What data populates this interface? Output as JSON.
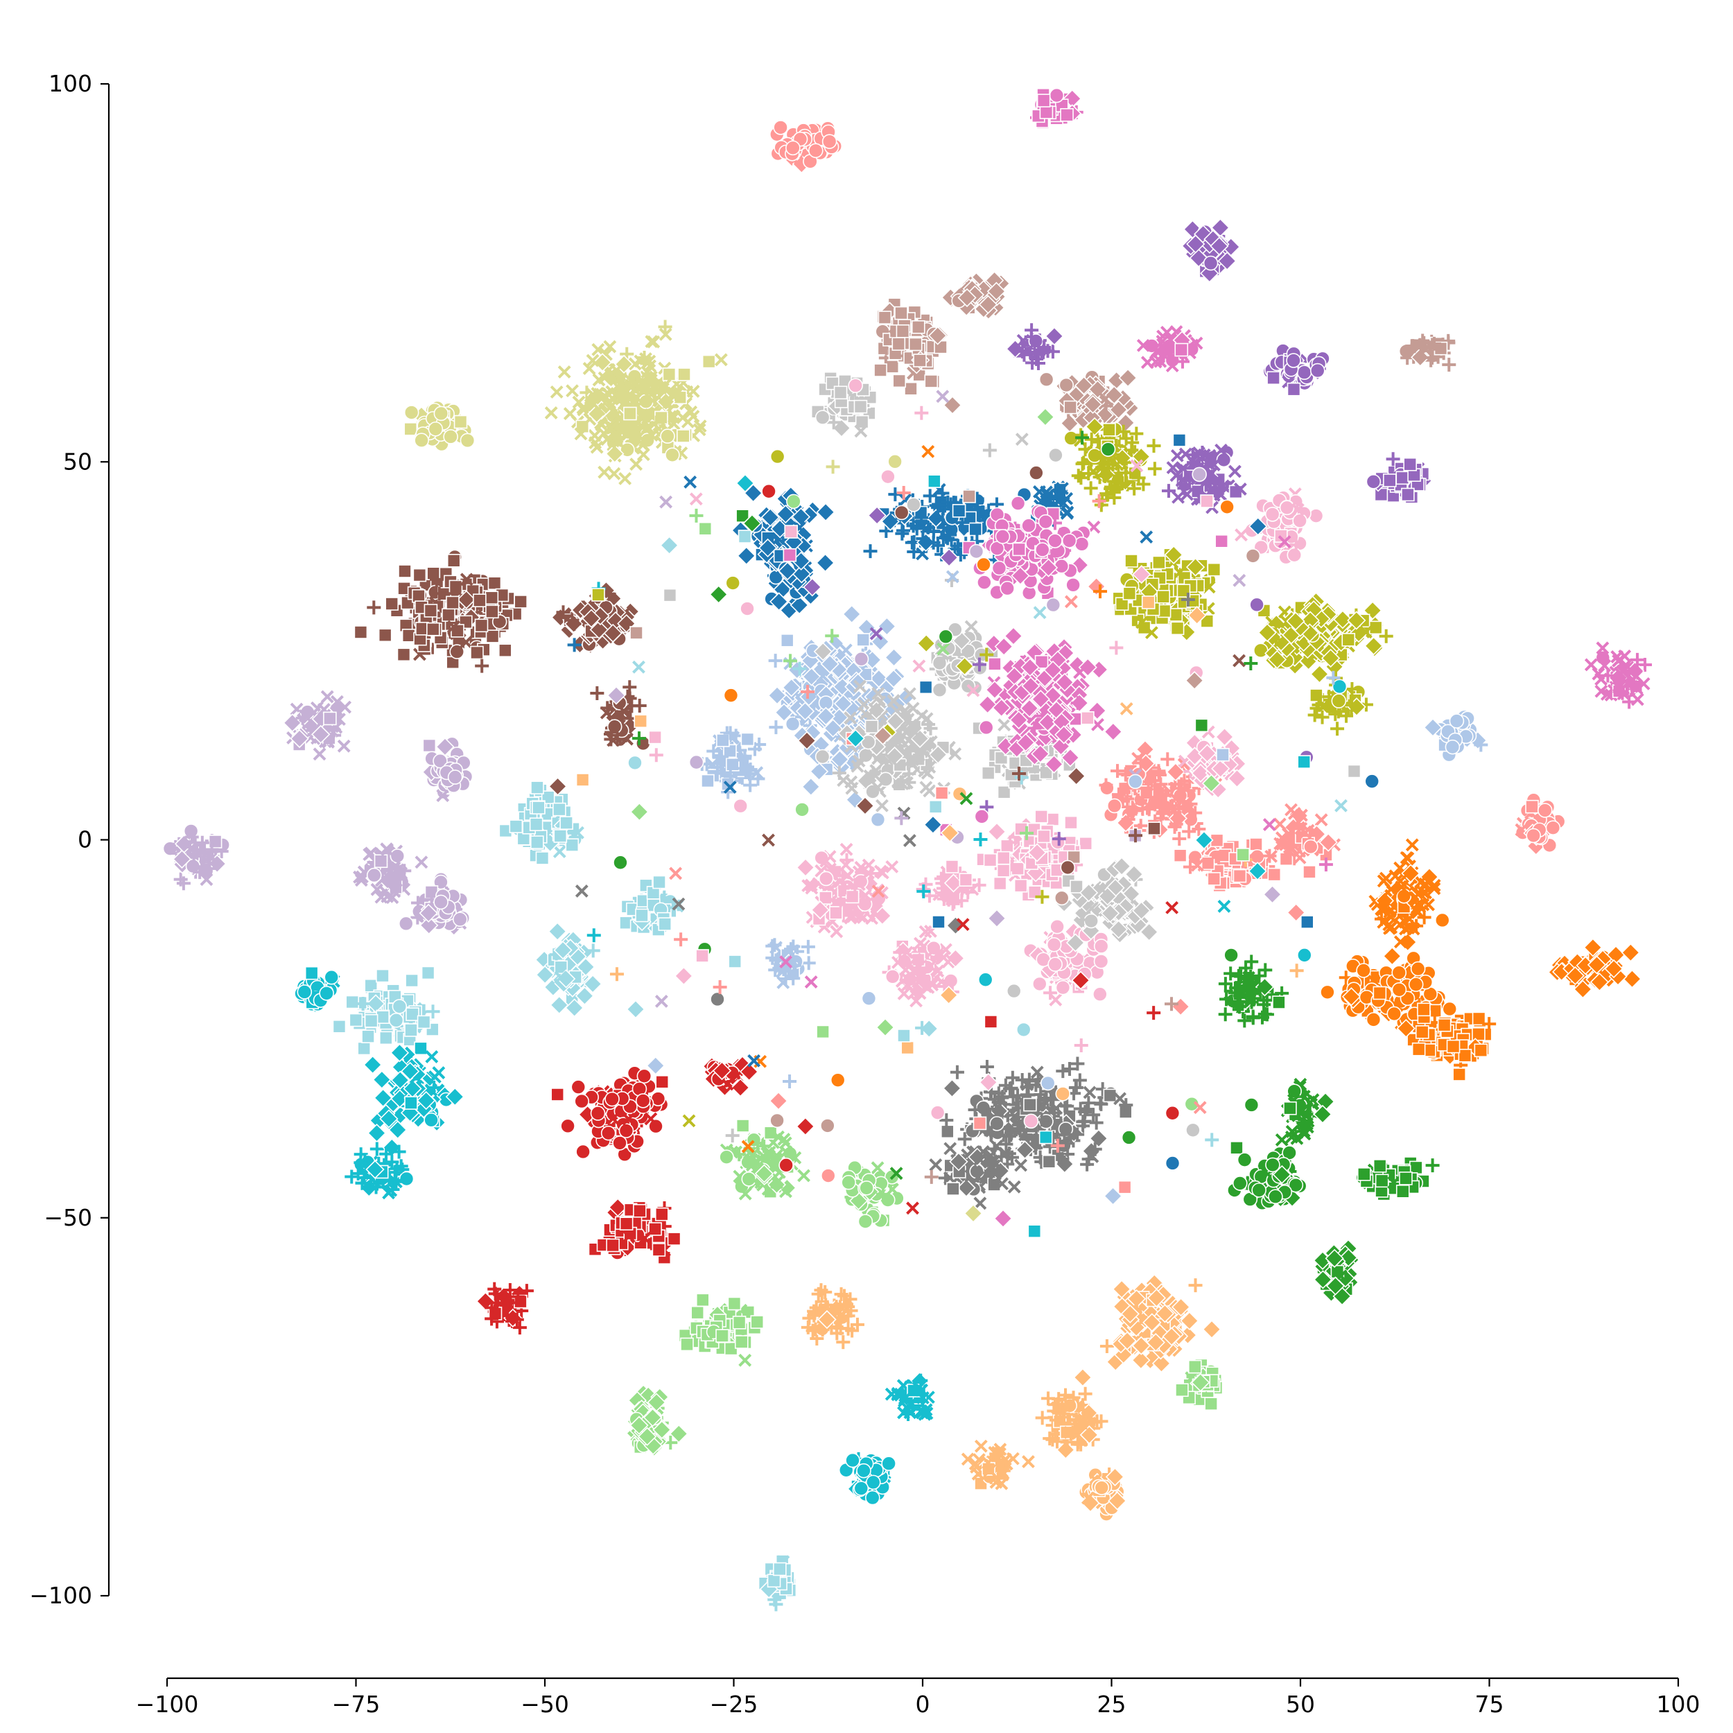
{
  "chart_data": {
    "type": "scatter",
    "title": "",
    "xlabel": "",
    "ylabel": "",
    "xlim": [
      -100,
      100
    ],
    "ylim": [
      -100,
      100
    ],
    "xticks": [
      -100,
      -75,
      -50,
      -25,
      0,
      25,
      50,
      75,
      100
    ],
    "yticks": [
      -100,
      -50,
      0,
      50,
      100
    ],
    "xtick_labels": [
      "−100",
      "−75",
      "−50",
      "−25",
      "0",
      "25",
      "50",
      "75",
      "100"
    ],
    "ytick_labels": [
      "−100",
      "−50",
      "0",
      "50",
      "100"
    ],
    "grid": false,
    "legend": "none",
    "marker_shapes": [
      "circle",
      "square",
      "diamond",
      "plus",
      "x"
    ],
    "clusters": [
      {
        "color": "#ff9896",
        "center": [
          -15,
          92
        ],
        "spread": [
          5,
          3
        ]
      },
      {
        "color": "#e377c2",
        "center": [
          17,
          97
        ],
        "spread": [
          3,
          3
        ]
      },
      {
        "color": "#9467bd",
        "center": [
          38,
          78
        ],
        "spread": [
          3,
          4
        ]
      },
      {
        "color": "#c49c94",
        "center": [
          67,
          65
        ],
        "spread": [
          4,
          2
        ]
      },
      {
        "color": "#dbdb8d",
        "center": [
          -38,
          57
        ],
        "spread": [
          10,
          10
        ]
      },
      {
        "color": "#dbdb8d",
        "center": [
          -64,
          55
        ],
        "spread": [
          4,
          3
        ]
      },
      {
        "color": "#c49c94",
        "center": [
          -2,
          66
        ],
        "spread": [
          5,
          6
        ]
      },
      {
        "color": "#c49c94",
        "center": [
          7,
          72
        ],
        "spread": [
          4,
          3
        ]
      },
      {
        "color": "#9467bd",
        "center": [
          15,
          65
        ],
        "spread": [
          3,
          2
        ]
      },
      {
        "color": "#e377c2",
        "center": [
          33,
          65
        ],
        "spread": [
          4,
          3
        ]
      },
      {
        "color": "#9467bd",
        "center": [
          49,
          62
        ],
        "spread": [
          4,
          3
        ]
      },
      {
        "color": "#c7c7c7",
        "center": [
          -10,
          58
        ],
        "spread": [
          4,
          4
        ]
      },
      {
        "color": "#c49c94",
        "center": [
          23,
          58
        ],
        "spread": [
          5,
          4
        ]
      },
      {
        "color": "#bcbd22",
        "center": [
          25,
          50
        ],
        "spread": [
          6,
          6
        ]
      },
      {
        "color": "#9467bd",
        "center": [
          37,
          48
        ],
        "spread": [
          5,
          5
        ]
      },
      {
        "color": "#f7b6d2",
        "center": [
          48,
          42
        ],
        "spread": [
          4,
          5
        ]
      },
      {
        "color": "#9467bd",
        "center": [
          63,
          47
        ],
        "spread": [
          4,
          3
        ]
      },
      {
        "color": "#1f77b4",
        "center": [
          -18,
          38
        ],
        "spread": [
          5,
          8
        ]
      },
      {
        "color": "#1f77b4",
        "center": [
          3,
          42
        ],
        "spread": [
          9,
          5
        ]
      },
      {
        "color": "#1f77b4",
        "center": [
          17,
          45
        ],
        "spread": [
          3,
          3
        ]
      },
      {
        "color": "#e377c2",
        "center": [
          14,
          38
        ],
        "spread": [
          8,
          6
        ]
      },
      {
        "color": "#bcbd22",
        "center": [
          32,
          33
        ],
        "spread": [
          8,
          6
        ]
      },
      {
        "color": "#bcbd22",
        "center": [
          52,
          27
        ],
        "spread": [
          9,
          5
        ]
      },
      {
        "color": "#bcbd22",
        "center": [
          55,
          18
        ],
        "spread": [
          4,
          3
        ]
      },
      {
        "color": "#e377c2",
        "center": [
          93,
          21
        ],
        "spread": [
          4,
          4
        ]
      },
      {
        "color": "#aec7e8",
        "center": [
          71,
          14
        ],
        "spread": [
          3,
          4
        ]
      },
      {
        "color": "#8c564b",
        "center": [
          -62,
          30
        ],
        "spread": [
          9,
          7
        ]
      },
      {
        "color": "#8c564b",
        "center": [
          -43,
          29
        ],
        "spread": [
          5,
          4
        ]
      },
      {
        "color": "#8c564b",
        "center": [
          -40,
          16
        ],
        "spread": [
          3,
          4
        ]
      },
      {
        "color": "#c5b0d5",
        "center": [
          -80,
          15
        ],
        "spread": [
          4,
          4
        ]
      },
      {
        "color": "#c5b0d5",
        "center": [
          -63,
          9
        ],
        "spread": [
          3,
          4
        ]
      },
      {
        "color": "#9edae5",
        "center": [
          -50,
          2
        ],
        "spread": [
          5,
          5
        ]
      },
      {
        "color": "#aec7e8",
        "center": [
          -11,
          18
        ],
        "spread": [
          9,
          10
        ]
      },
      {
        "color": "#aec7e8",
        "center": [
          -25,
          10
        ],
        "spread": [
          4,
          5
        ]
      },
      {
        "color": "#c7c7c7",
        "center": [
          -4,
          12
        ],
        "spread": [
          8,
          8
        ]
      },
      {
        "color": "#c7c7c7",
        "center": [
          5,
          24
        ],
        "spread": [
          5,
          4
        ]
      },
      {
        "color": "#c7c7c7",
        "center": [
          14,
          12
        ],
        "spread": [
          6,
          6
        ]
      },
      {
        "color": "#e377c2",
        "center": [
          16,
          18
        ],
        "spread": [
          8,
          8
        ]
      },
      {
        "color": "#ff9896",
        "center": [
          31,
          6
        ],
        "spread": [
          8,
          6
        ]
      },
      {
        "color": "#ff9896",
        "center": [
          50,
          0
        ],
        "spread": [
          4,
          4
        ]
      },
      {
        "color": "#ff9896",
        "center": [
          81,
          2
        ],
        "spread": [
          3,
          3
        ]
      },
      {
        "color": "#ff9896",
        "center": [
          40,
          -3
        ],
        "spread": [
          7,
          4
        ]
      },
      {
        "color": "#f7b6d2",
        "center": [
          38,
          10
        ],
        "spread": [
          4,
          4
        ]
      },
      {
        "color": "#f7b6d2",
        "center": [
          4,
          -6
        ],
        "spread": [
          4,
          3
        ]
      },
      {
        "color": "#f7b6d2",
        "center": [
          -10,
          -7
        ],
        "spread": [
          6,
          6
        ]
      },
      {
        "color": "#f7b6d2",
        "center": [
          19,
          -16
        ],
        "spread": [
          5,
          5
        ]
      },
      {
        "color": "#f7b6d2",
        "center": [
          15,
          -2
        ],
        "spread": [
          7,
          5
        ]
      },
      {
        "color": "#c7c7c7",
        "center": [
          25,
          -8
        ],
        "spread": [
          6,
          5
        ]
      },
      {
        "color": "#c5b0d5",
        "center": [
          -96,
          -2
        ],
        "spread": [
          4,
          4
        ]
      },
      {
        "color": "#c5b0d5",
        "center": [
          -71,
          -4
        ],
        "spread": [
          4,
          4
        ]
      },
      {
        "color": "#c5b0d5",
        "center": [
          -64,
          -9
        ],
        "spread": [
          4,
          4
        ]
      },
      {
        "color": "#9edae5",
        "center": [
          -36,
          -9
        ],
        "spread": [
          4,
          4
        ]
      },
      {
        "color": "#9edae5",
        "center": [
          -47,
          -17
        ],
        "spread": [
          4,
          5
        ]
      },
      {
        "color": "#aec7e8",
        "center": [
          -18,
          -16
        ],
        "spread": [
          3,
          3
        ]
      },
      {
        "color": "#f7b6d2",
        "center": [
          0,
          -17
        ],
        "spread": [
          5,
          5
        ]
      },
      {
        "color": "#17becf",
        "center": [
          -80,
          -20
        ],
        "spread": [
          3,
          3
        ]
      },
      {
        "color": "#9edae5",
        "center": [
          -70,
          -23
        ],
        "spread": [
          6,
          5
        ]
      },
      {
        "color": "#17becf",
        "center": [
          -67,
          -33
        ],
        "spread": [
          5,
          6
        ]
      },
      {
        "color": "#17becf",
        "center": [
          -72,
          -44
        ],
        "spread": [
          4,
          4
        ]
      },
      {
        "color": "#ff7f0e",
        "center": [
          64,
          -8
        ],
        "spread": [
          5,
          6
        ]
      },
      {
        "color": "#ff7f0e",
        "center": [
          62,
          -20
        ],
        "spread": [
          8,
          5
        ]
      },
      {
        "color": "#ff7f0e",
        "center": [
          70,
          -26
        ],
        "spread": [
          7,
          4
        ]
      },
      {
        "color": "#ff7f0e",
        "center": [
          89,
          -17
        ],
        "spread": [
          5,
          3
        ]
      },
      {
        "color": "#2ca02c",
        "center": [
          43,
          -20
        ],
        "spread": [
          4,
          5
        ]
      },
      {
        "color": "#2ca02c",
        "center": [
          50,
          -36
        ],
        "spread": [
          3,
          4
        ]
      },
      {
        "color": "#2ca02c",
        "center": [
          46,
          -45
        ],
        "spread": [
          5,
          4
        ]
      },
      {
        "color": "#2ca02c",
        "center": [
          62,
          -45
        ],
        "spread": [
          5,
          3
        ]
      },
      {
        "color": "#2ca02c",
        "center": [
          55,
          -57
        ],
        "spread": [
          3,
          4
        ]
      },
      {
        "color": "#7f7f7f",
        "center": [
          15,
          -37
        ],
        "spread": [
          12,
          7
        ]
      },
      {
        "color": "#7f7f7f",
        "center": [
          7,
          -44
        ],
        "spread": [
          6,
          4
        ]
      },
      {
        "color": "#d62728",
        "center": [
          -40,
          -36
        ],
        "spread": [
          6,
          6
        ]
      },
      {
        "color": "#d62728",
        "center": [
          -38,
          -52
        ],
        "spread": [
          6,
          4
        ]
      },
      {
        "color": "#d62728",
        "center": [
          -26,
          -31
        ],
        "spread": [
          3,
          2
        ]
      },
      {
        "color": "#d62728",
        "center": [
          -55,
          -62
        ],
        "spread": [
          3,
          3
        ]
      },
      {
        "color": "#98df8a",
        "center": [
          -21,
          -43
        ],
        "spread": [
          5,
          5
        ]
      },
      {
        "color": "#98df8a",
        "center": [
          -7,
          -47
        ],
        "spread": [
          4,
          4
        ]
      },
      {
        "color": "#98df8a",
        "center": [
          -27,
          -65
        ],
        "spread": [
          5,
          4
        ]
      },
      {
        "color": "#98df8a",
        "center": [
          -36,
          -77
        ],
        "spread": [
          3,
          5
        ]
      },
      {
        "color": "#ffbb78",
        "center": [
          -12,
          -63
        ],
        "spread": [
          4,
          4
        ]
      },
      {
        "color": "#17becf",
        "center": [
          -1,
          -74
        ],
        "spread": [
          3,
          3
        ]
      },
      {
        "color": "#17becf",
        "center": [
          -7,
          -84
        ],
        "spread": [
          3,
          3
        ]
      },
      {
        "color": "#9edae5",
        "center": [
          -19,
          -98
        ],
        "spread": [
          2,
          4
        ]
      },
      {
        "color": "#ffbb78",
        "center": [
          30,
          -64
        ],
        "spread": [
          7,
          6
        ]
      },
      {
        "color": "#ffbb78",
        "center": [
          20,
          -77
        ],
        "spread": [
          5,
          5
        ]
      },
      {
        "color": "#ffbb78",
        "center": [
          9,
          -83
        ],
        "spread": [
          4,
          3
        ]
      },
      {
        "color": "#ffbb78",
        "center": [
          24,
          -86
        ],
        "spread": [
          3,
          3
        ]
      },
      {
        "color": "#98df8a",
        "center": [
          37,
          -72
        ],
        "spread": [
          3,
          3
        ]
      }
    ]
  }
}
